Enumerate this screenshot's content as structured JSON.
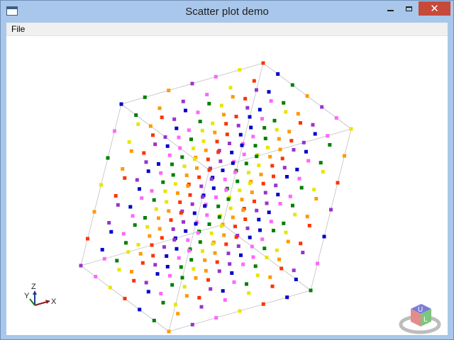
{
  "window": {
    "title": "Scatter plot demo",
    "close_glyph": "✕"
  },
  "menu": {
    "file_label": "File"
  },
  "axes_indicator": {
    "x_label": "X",
    "y_label": "Y",
    "z_label": "Z"
  },
  "view_cube": {
    "face_top": "U",
    "face_right": "L"
  },
  "icons": [
    "app-window-icon",
    "minimize-icon",
    "maximize-icon",
    "close-icon",
    "axes-triad-icon",
    "view-cube-icon"
  ],
  "colors": {
    "close_button": "#c7493a",
    "frame": "#a9c7ea",
    "marker_palette": [
      "#0000cc",
      "#e6e600",
      "#9933cc",
      "#008000",
      "#ff3300",
      "#ff66ff",
      "#ff9900"
    ]
  },
  "chart_data": {
    "type": "scatter",
    "dimensions": 3,
    "marker_shape": "cube",
    "bounding_box": true,
    "grid": false
  }
}
